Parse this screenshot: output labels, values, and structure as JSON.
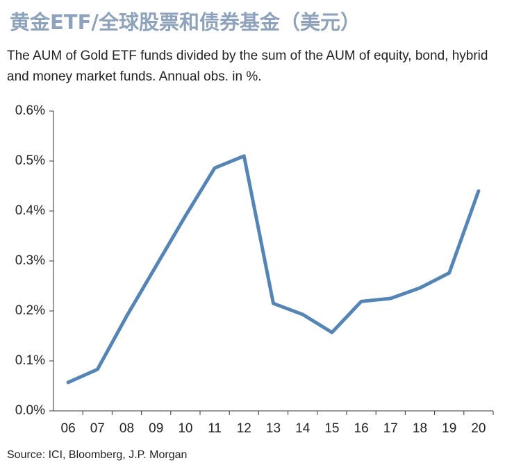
{
  "chart_data": {
    "type": "line",
    "title": "黄金ETF/全球股票和债券基金（美元）",
    "subtitle": "The AUM of Gold ETF funds divided by the sum of the AUM of equity, bond, hybrid and money market funds. Annual obs. in %.",
    "source": "Source: ICI, Bloomberg, J.P. Morgan",
    "categories": [
      "06",
      "07",
      "08",
      "09",
      "10",
      "11",
      "12",
      "13",
      "14",
      "15",
      "16",
      "17",
      "18",
      "19",
      "20"
    ],
    "values": [
      0.057,
      0.083,
      0.19,
      0.29,
      0.39,
      0.486,
      0.51,
      0.215,
      0.193,
      0.157,
      0.219,
      0.225,
      0.246,
      0.276,
      0.44
    ],
    "color": "#5585b5",
    "ylim": [
      0,
      0.6
    ],
    "yticks": [
      {
        "value": 0,
        "label": "0.0%"
      },
      {
        "value": 0.1,
        "label": "0.1%"
      },
      {
        "value": 0.2,
        "label": "0.2%"
      },
      {
        "value": 0.3,
        "label": "0.3%"
      },
      {
        "value": 0.4,
        "label": "0.4%"
      },
      {
        "value": 0.5,
        "label": "0.5%"
      },
      {
        "value": 0.6,
        "label": "0.6%"
      }
    ],
    "grid": false
  }
}
